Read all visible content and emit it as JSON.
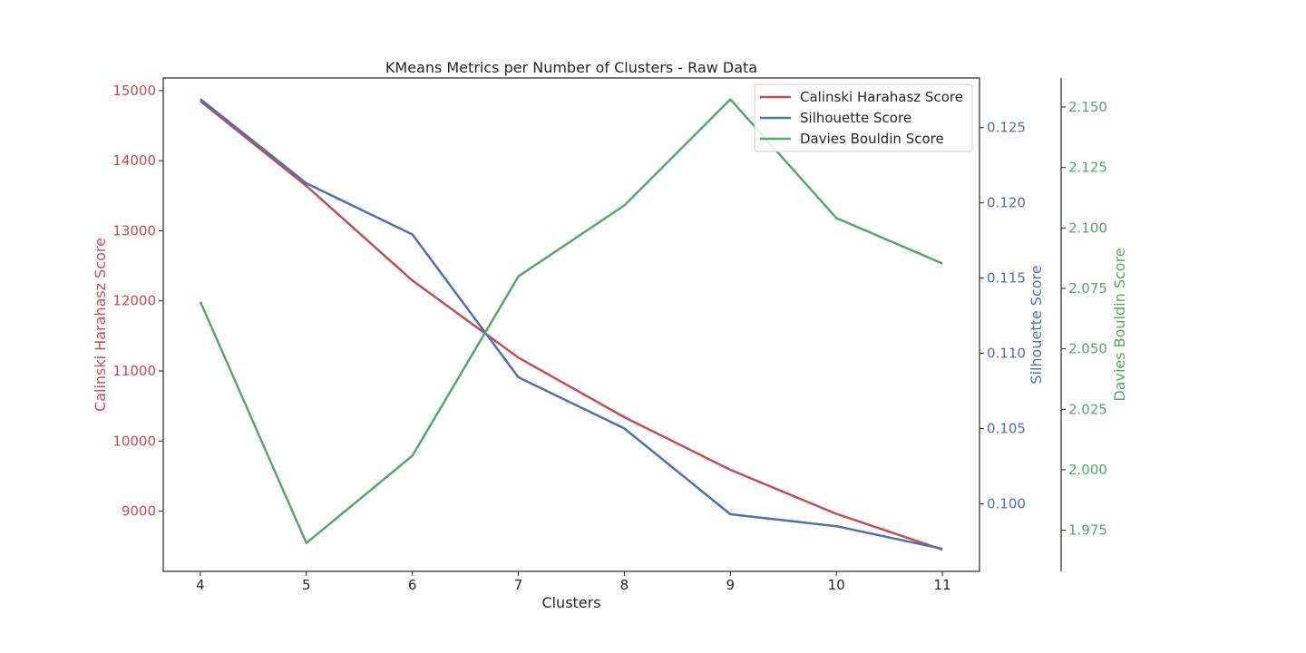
{
  "colors": {
    "calinski": "#c44e52",
    "silhouette": "#4c72b0",
    "davies": "#55a868",
    "axis": "#262626"
  },
  "chart_data": {
    "type": "line",
    "title": "KMeans Metrics per Number of Clusters - Raw Data",
    "xlabel": "Clusters",
    "x": [
      4,
      5,
      6,
      7,
      8,
      9,
      10,
      11
    ],
    "xticks": [
      "4",
      "5",
      "6",
      "7",
      "8",
      "9",
      "10",
      "11"
    ],
    "grid": false,
    "legend_position": "top-right",
    "series": [
      {
        "name": "Calinski Harahasz Score",
        "axis": "left",
        "ylabel": "Calinski Harahasz Score",
        "values": [
          14850,
          13640,
          12290,
          11190,
          10340,
          9590,
          8960,
          8450
        ],
        "ylim": [
          8140,
          15180
        ],
        "ticks": [
          9000,
          10000,
          11000,
          12000,
          13000,
          14000,
          15000
        ],
        "tick_labels": [
          "9000",
          "10000",
          "11000",
          "12000",
          "13000",
          "14000",
          "15000"
        ]
      },
      {
        "name": "Silhouette Score",
        "axis": "right",
        "ylabel": "Silhouette Score",
        "values": [
          0.1269,
          0.1213,
          0.1179,
          0.1084,
          0.105,
          0.0993,
          0.0985,
          0.097
        ],
        "ylim": [
          0.0955,
          0.1283
        ],
        "ticks": [
          0.1,
          0.105,
          0.11,
          0.115,
          0.12,
          0.125
        ],
        "tick_labels": [
          "0.100",
          "0.105",
          "0.110",
          "0.115",
          "0.120",
          "0.125"
        ]
      },
      {
        "name": "Davies Bouldin Score",
        "axis": "right-offset",
        "ylabel": "Davies Bouldin Score",
        "values": [
          2.0695,
          1.9697,
          2.0058,
          2.08,
          2.1093,
          2.1532,
          2.1041,
          2.0853
        ],
        "ylim": [
          1.958,
          2.162
        ],
        "ticks": [
          1.975,
          2.0,
          2.025,
          2.05,
          2.075,
          2.1,
          2.125,
          2.15
        ],
        "tick_labels": [
          "1.975",
          "2.000",
          "2.025",
          "2.050",
          "2.075",
          "2.100",
          "2.125",
          "2.150"
        ]
      }
    ]
  }
}
